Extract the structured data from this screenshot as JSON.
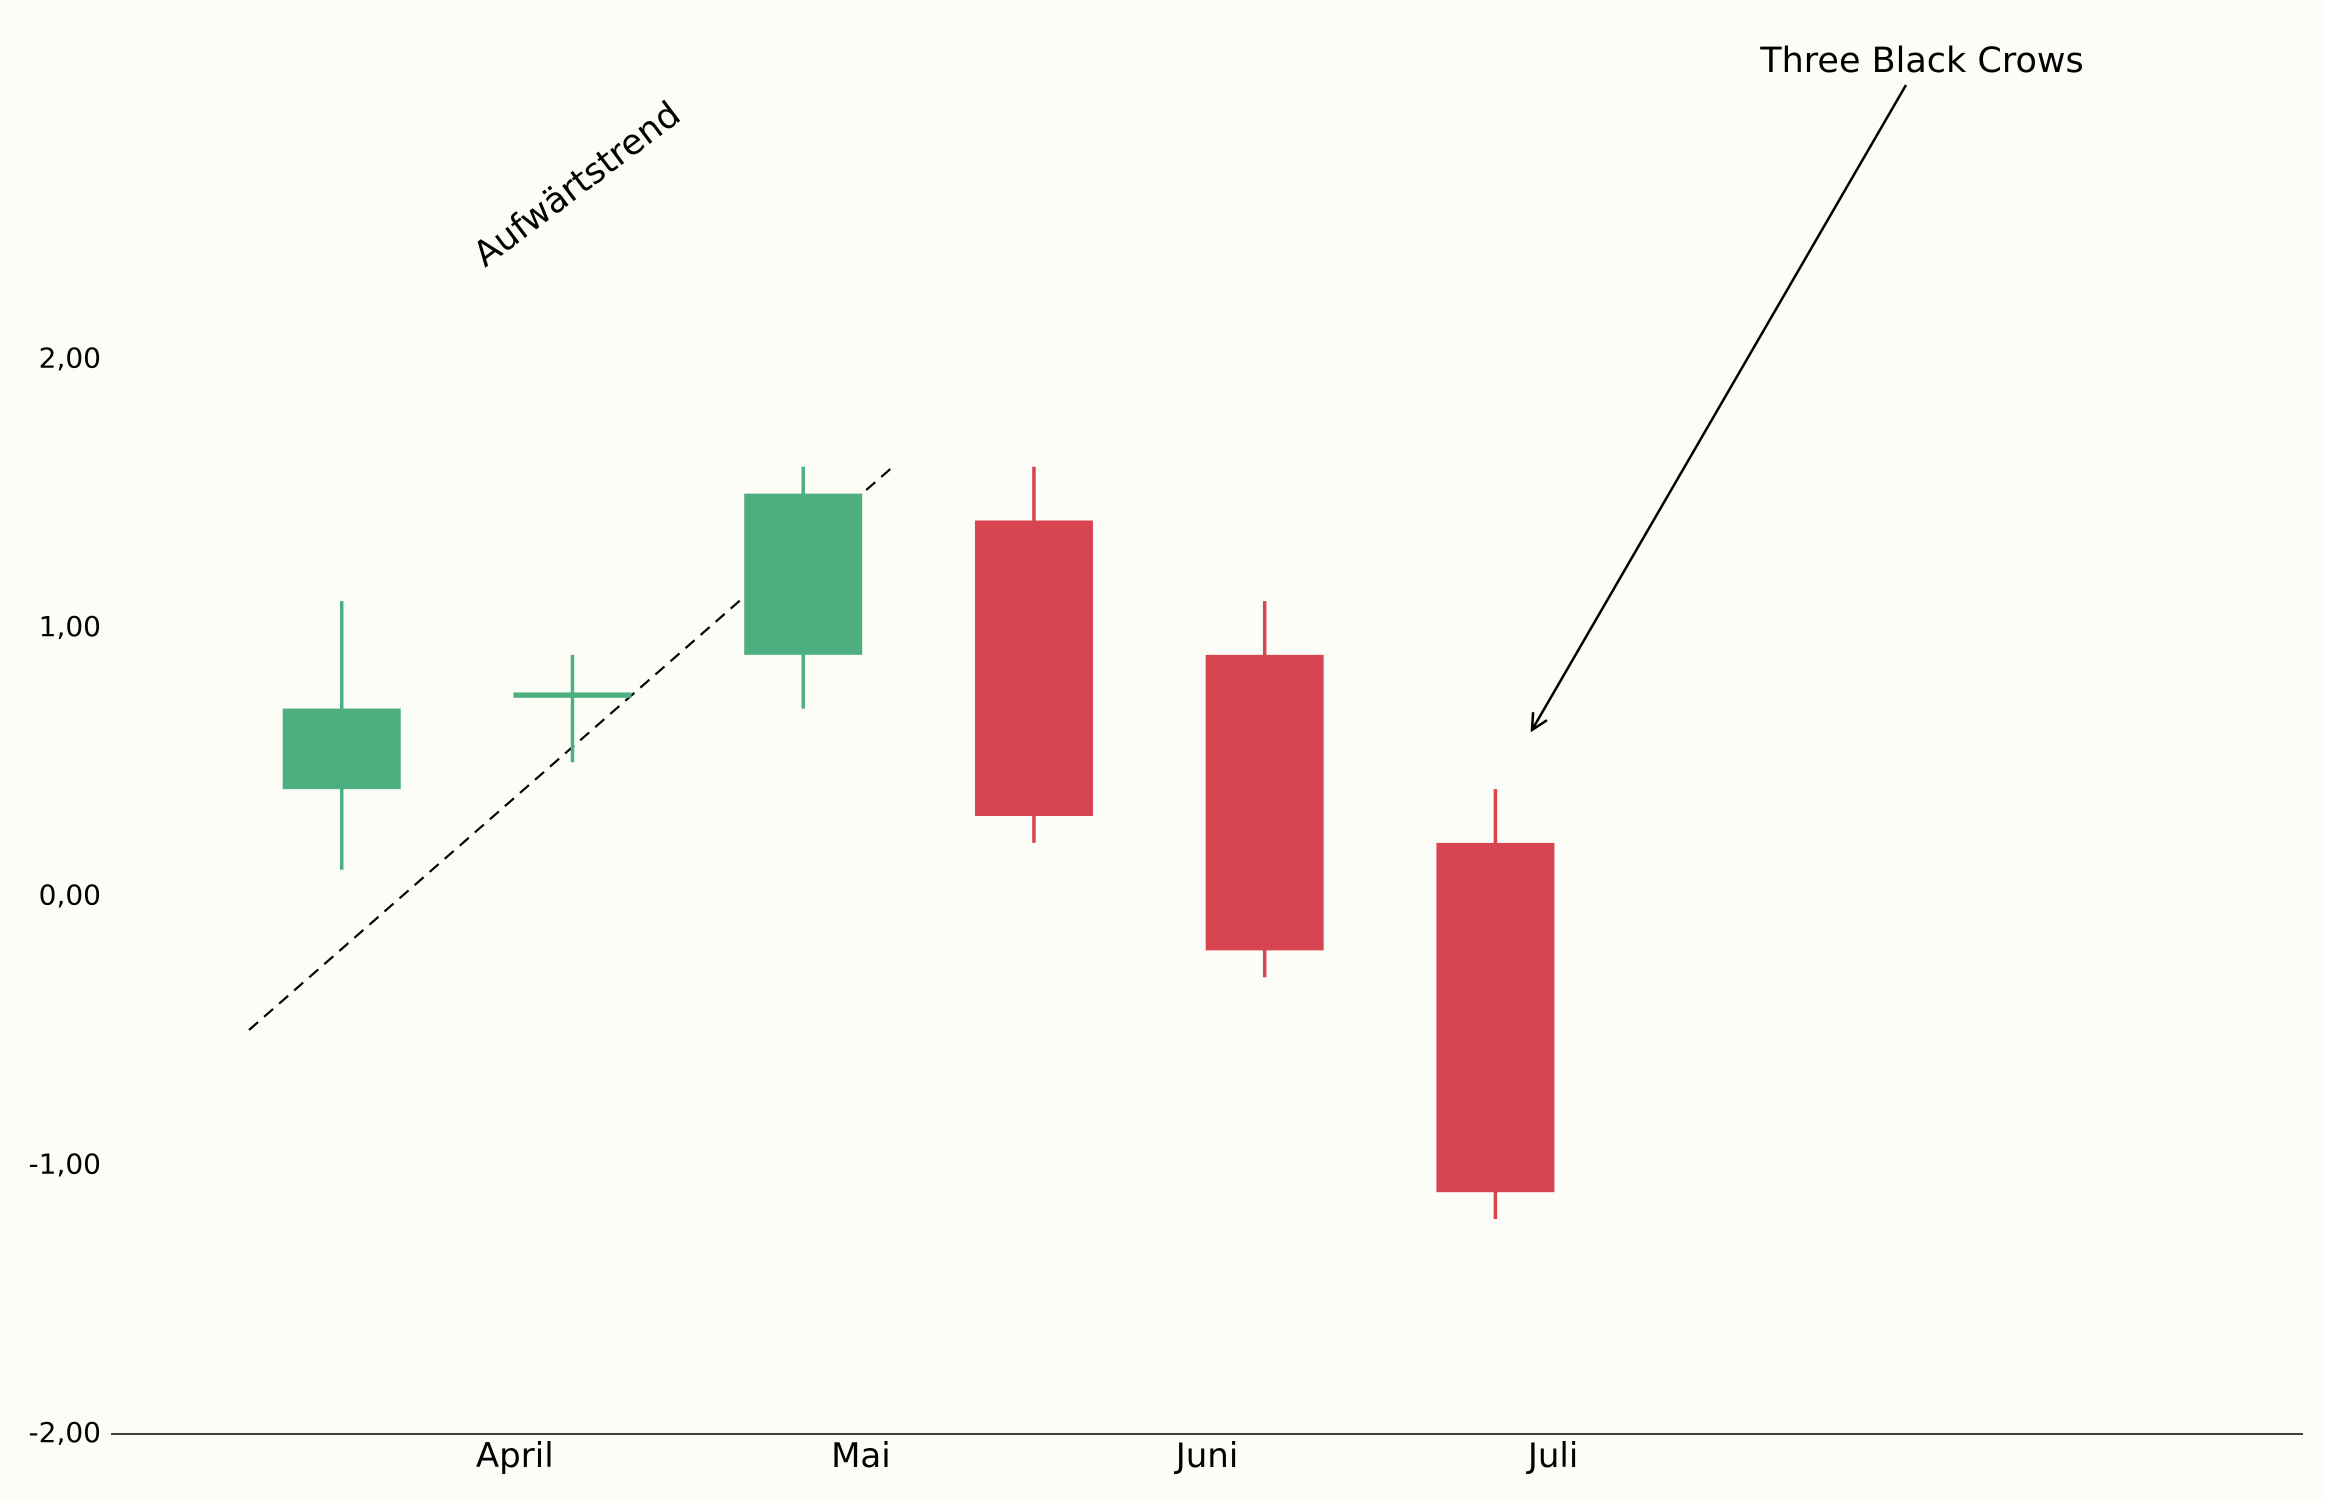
{
  "chart_data": {
    "type": "candlestick",
    "x": [
      0,
      1,
      2,
      3,
      4,
      5
    ],
    "open": [
      0.4,
      0.74,
      0.9,
      1.4,
      0.9,
      0.2
    ],
    "high": [
      1.1,
      0.9,
      1.6,
      1.6,
      1.1,
      0.4
    ],
    "low": [
      0.1,
      0.5,
      0.7,
      0.2,
      -0.3,
      -1.2
    ],
    "close": [
      0.7,
      0.76,
      1.5,
      0.3,
      -0.2,
      -1.1
    ],
    "up_color": "#4daf7f",
    "down_color": "#d64550",
    "xlim": [
      -1,
      8.5
    ],
    "xticks": [
      {
        "value": 0.75,
        "label": "April"
      },
      {
        "value": 2.25,
        "label": "Mai"
      },
      {
        "value": 3.75,
        "label": "Juni"
      },
      {
        "value": 5.25,
        "label": "Juli"
      }
    ],
    "ylim": [
      -2,
      3.3
    ],
    "yticks": [
      {
        "value": -2,
        "label": "-2,00"
      },
      {
        "value": -1,
        "label": "-1,00"
      },
      {
        "value": 0,
        "label": "0,00"
      },
      {
        "value": 1,
        "label": "1,00"
      },
      {
        "value": 2,
        "label": "2,00"
      }
    ],
    "annotations": [
      {
        "text": "Aufwärtstrend"
      },
      {
        "text": "Three Black Crows"
      }
    ]
  }
}
